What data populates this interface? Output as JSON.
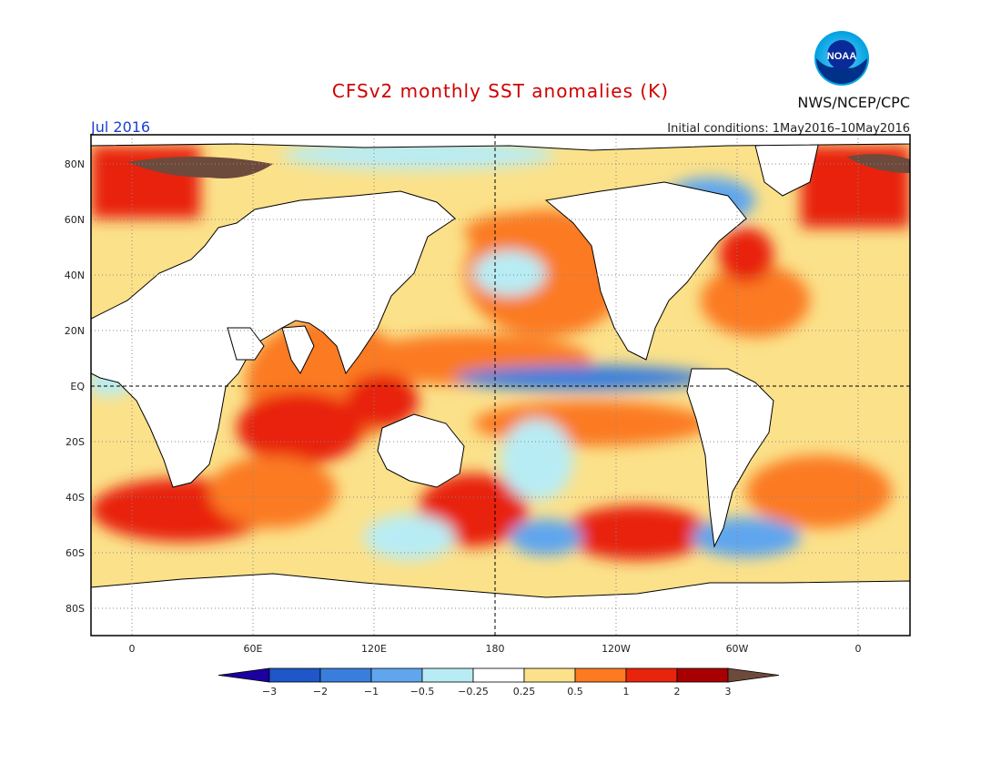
{
  "title": "CFSv2 monthly SST anomalies (K)",
  "month_label": "Jul 2016",
  "initial_conditions": "Initial conditions: 1May2016–10May2016",
  "agency": "NWS/NCEP/CPC",
  "logo_text": "NOAA",
  "lat_labels": [
    "80N",
    "60N",
    "40N",
    "20N",
    "EQ",
    "20S",
    "40S",
    "60S",
    "80S"
  ],
  "lon_labels": [
    "0",
    "60E",
    "120E",
    "180",
    "120W",
    "60W",
    "0"
  ],
  "colorbar": {
    "tick_labels": [
      "−3",
      "−2",
      "−1",
      "−0.5",
      "−0.25",
      "0.25",
      "0.5",
      "1",
      "2",
      "3"
    ],
    "colors": [
      "#1c00a0",
      "#1f56c8",
      "#3a7edc",
      "#5fa6ee",
      "#b8ecf4",
      "#ffffff",
      "#fbe18a",
      "#fb7a22",
      "#e8240c",
      "#a80000",
      "#6e4a3c"
    ]
  }
}
